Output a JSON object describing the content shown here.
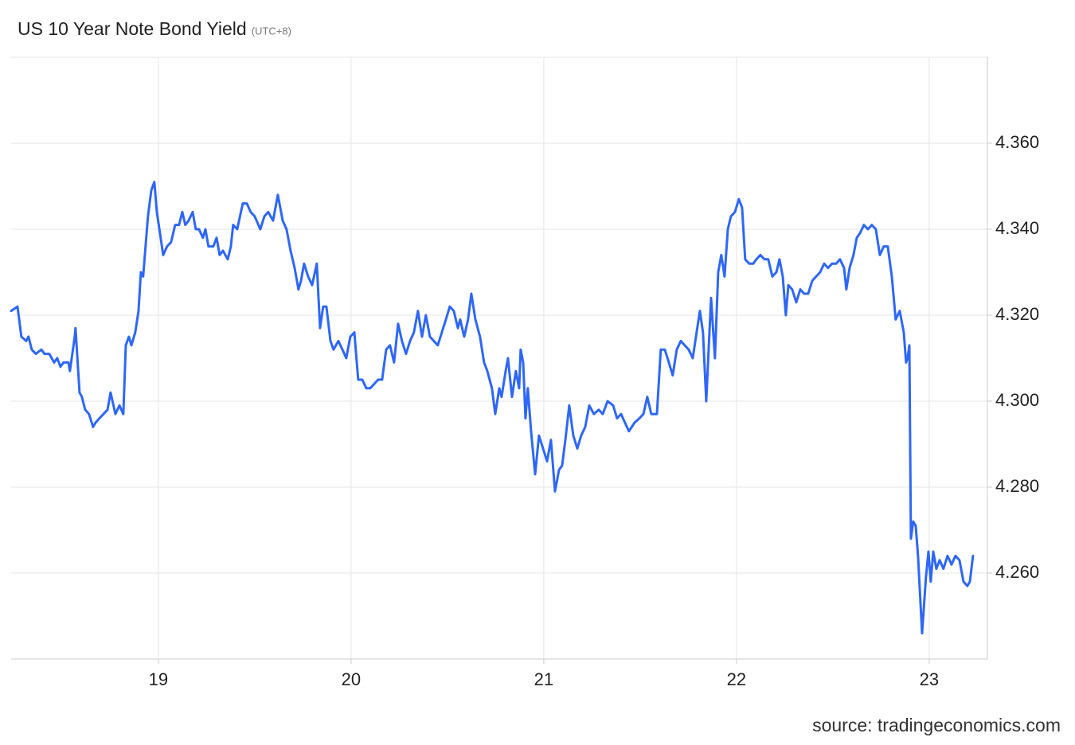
{
  "chart_data": {
    "type": "line",
    "title": "US 10 Year Note Bond Yield",
    "subtitle": "(UTC+8)",
    "source": "source: tradingeconomics.com",
    "xlim": [
      18.236,
      23.302
    ],
    "xticks": [
      19,
      20,
      21,
      22,
      23
    ],
    "ylim": [
      4.24,
      4.38
    ],
    "yticks": [
      {
        "value": 4.26,
        "label": "4.260"
      },
      {
        "value": 4.28,
        "label": "4.280"
      },
      {
        "value": 4.3,
        "label": "4.300"
      },
      {
        "value": 4.32,
        "label": "4.320"
      },
      {
        "value": 4.34,
        "label": "4.340"
      },
      {
        "value": 4.36,
        "label": "4.360"
      }
    ],
    "grid": true,
    "x": [
      18.236,
      18.269,
      18.289,
      18.314,
      18.326,
      18.343,
      18.364,
      18.393,
      18.409,
      18.434,
      18.459,
      18.475,
      18.492,
      18.508,
      18.533,
      18.541,
      18.566,
      18.57,
      18.591,
      18.603,
      18.62,
      18.64,
      18.661,
      18.674,
      18.694,
      18.715,
      18.736,
      18.752,
      18.777,
      18.798,
      18.818,
      18.831,
      18.847,
      18.86,
      18.88,
      18.897,
      18.909,
      18.921,
      18.946,
      18.963,
      18.979,
      18.992,
      19.025,
      19.045,
      19.066,
      19.087,
      19.107,
      19.124,
      19.14,
      19.157,
      19.178,
      19.194,
      19.211,
      19.231,
      19.244,
      19.26,
      19.285,
      19.302,
      19.318,
      19.335,
      19.36,
      19.376,
      19.388,
      19.409,
      19.438,
      19.459,
      19.479,
      19.5,
      19.529,
      19.55,
      19.57,
      19.595,
      19.62,
      19.645,
      19.665,
      19.686,
      19.707,
      19.727,
      19.74,
      19.756,
      19.777,
      19.798,
      19.822,
      19.839,
      19.855,
      19.872,
      19.893,
      19.909,
      19.934,
      19.955,
      19.975,
      19.996,
      20.017,
      20.037,
      20.058,
      20.079,
      20.099,
      20.12,
      20.14,
      20.161,
      20.182,
      20.202,
      20.223,
      20.244,
      20.264,
      20.285,
      20.306,
      20.326,
      20.347,
      20.368,
      20.388,
      20.409,
      20.45,
      20.471,
      20.492,
      20.512,
      20.533,
      20.554,
      20.566,
      20.587,
      20.607,
      20.624,
      20.645,
      20.669,
      20.69,
      20.707,
      20.731,
      20.748,
      20.769,
      20.781,
      20.802,
      20.814,
      20.835,
      20.855,
      20.872,
      20.88,
      20.893,
      20.905,
      20.917,
      20.934,
      20.955,
      20.975,
      20.996,
      21.017,
      21.037,
      21.058,
      21.079,
      21.095,
      21.112,
      21.132,
      21.153,
      21.174,
      21.194,
      21.215,
      21.236,
      21.26,
      21.285,
      21.306,
      21.331,
      21.36,
      21.38,
      21.401,
      21.421,
      21.442,
      21.471,
      21.496,
      21.517,
      21.537,
      21.558,
      21.587,
      21.607,
      21.628,
      21.649,
      21.669,
      21.69,
      21.711,
      21.731,
      21.752,
      21.773,
      21.793,
      21.81,
      21.826,
      21.843,
      21.868,
      21.888,
      21.905,
      21.921,
      21.938,
      21.955,
      21.971,
      21.992,
      22.012,
      22.029,
      22.045,
      22.066,
      22.087,
      22.103,
      22.124,
      22.145,
      22.165,
      22.186,
      22.207,
      22.223,
      22.24,
      22.256,
      22.269,
      22.289,
      22.31,
      22.331,
      22.351,
      22.372,
      22.393,
      22.413,
      22.434,
      22.455,
      22.475,
      22.496,
      22.517,
      22.537,
      22.558,
      22.57,
      22.587,
      22.607,
      22.624,
      22.64,
      22.661,
      22.682,
      22.702,
      22.723,
      22.744,
      22.764,
      22.785,
      22.806,
      22.826,
      22.847,
      22.868,
      22.88,
      22.888,
      22.897,
      22.905,
      22.917,
      22.93,
      22.942,
      22.963,
      22.983,
      22.996,
      23.008,
      23.021,
      23.037,
      23.054,
      23.074,
      23.095,
      23.116,
      23.136,
      23.157,
      23.178,
      23.198,
      23.211,
      23.227
    ],
    "series": [
      {
        "name": "US 10 Year Note Bond Yield",
        "color": "#2e67f8",
        "values": [
          4.321,
          4.322,
          4.315,
          4.314,
          4.315,
          4.312,
          4.311,
          4.312,
          4.311,
          4.311,
          4.309,
          4.31,
          4.308,
          4.309,
          4.309,
          4.307,
          4.315,
          4.317,
          4.302,
          4.301,
          4.298,
          4.297,
          4.294,
          4.295,
          4.296,
          4.297,
          4.298,
          4.302,
          4.297,
          4.299,
          4.297,
          4.313,
          4.315,
          4.313,
          4.316,
          4.321,
          4.33,
          4.329,
          4.343,
          4.349,
          4.351,
          4.344,
          4.334,
          4.336,
          4.337,
          4.341,
          4.341,
          4.344,
          4.341,
          4.342,
          4.344,
          4.34,
          4.34,
          4.338,
          4.34,
          4.336,
          4.336,
          4.338,
          4.334,
          4.335,
          4.333,
          4.336,
          4.341,
          4.34,
          4.346,
          4.346,
          4.344,
          4.343,
          4.34,
          4.343,
          4.344,
          4.342,
          4.348,
          4.342,
          4.34,
          4.335,
          4.331,
          4.326,
          4.328,
          4.332,
          4.329,
          4.327,
          4.332,
          4.317,
          4.322,
          4.322,
          4.314,
          4.312,
          4.314,
          4.312,
          4.31,
          4.315,
          4.316,
          4.305,
          4.305,
          4.303,
          4.303,
          4.304,
          4.305,
          4.305,
          4.312,
          4.313,
          4.309,
          4.318,
          4.314,
          4.311,
          4.314,
          4.316,
          4.321,
          4.315,
          4.32,
          4.315,
          4.313,
          4.316,
          4.319,
          4.322,
          4.321,
          4.317,
          4.319,
          4.315,
          4.319,
          4.325,
          4.319,
          4.315,
          4.309,
          4.307,
          4.303,
          4.297,
          4.303,
          4.301,
          4.307,
          4.31,
          4.301,
          4.307,
          4.303,
          4.312,
          4.309,
          4.296,
          4.303,
          4.293,
          4.283,
          4.292,
          4.289,
          4.286,
          4.291,
          4.279,
          4.284,
          4.285,
          4.291,
          4.299,
          4.292,
          4.289,
          4.292,
          4.294,
          4.299,
          4.297,
          4.298,
          4.297,
          4.3,
          4.299,
          4.296,
          4.297,
          4.295,
          4.293,
          4.295,
          4.296,
          4.297,
          4.301,
          4.297,
          4.297,
          4.312,
          4.312,
          4.309,
          4.306,
          4.312,
          4.314,
          4.313,
          4.312,
          4.31,
          4.316,
          4.321,
          4.316,
          4.3,
          4.324,
          4.31,
          4.33,
          4.334,
          4.329,
          4.34,
          4.343,
          4.344,
          4.347,
          4.345,
          4.333,
          4.332,
          4.332,
          4.333,
          4.334,
          4.333,
          4.333,
          4.329,
          4.33,
          4.333,
          4.329,
          4.32,
          4.327,
          4.326,
          4.323,
          4.326,
          4.325,
          4.325,
          4.328,
          4.329,
          4.33,
          4.332,
          4.331,
          4.332,
          4.332,
          4.333,
          4.331,
          4.326,
          4.331,
          4.334,
          4.338,
          4.339,
          4.341,
          4.34,
          4.341,
          4.34,
          4.334,
          4.336,
          4.336,
          4.329,
          4.319,
          4.321,
          4.316,
          4.309,
          4.31,
          4.313,
          4.268,
          4.272,
          4.271,
          4.264,
          4.246,
          4.259,
          4.265,
          4.258,
          4.265,
          4.261,
          4.263,
          4.261,
          4.264,
          4.262,
          4.264,
          4.263,
          4.258,
          4.257,
          4.258,
          4.264
        ]
      }
    ]
  }
}
